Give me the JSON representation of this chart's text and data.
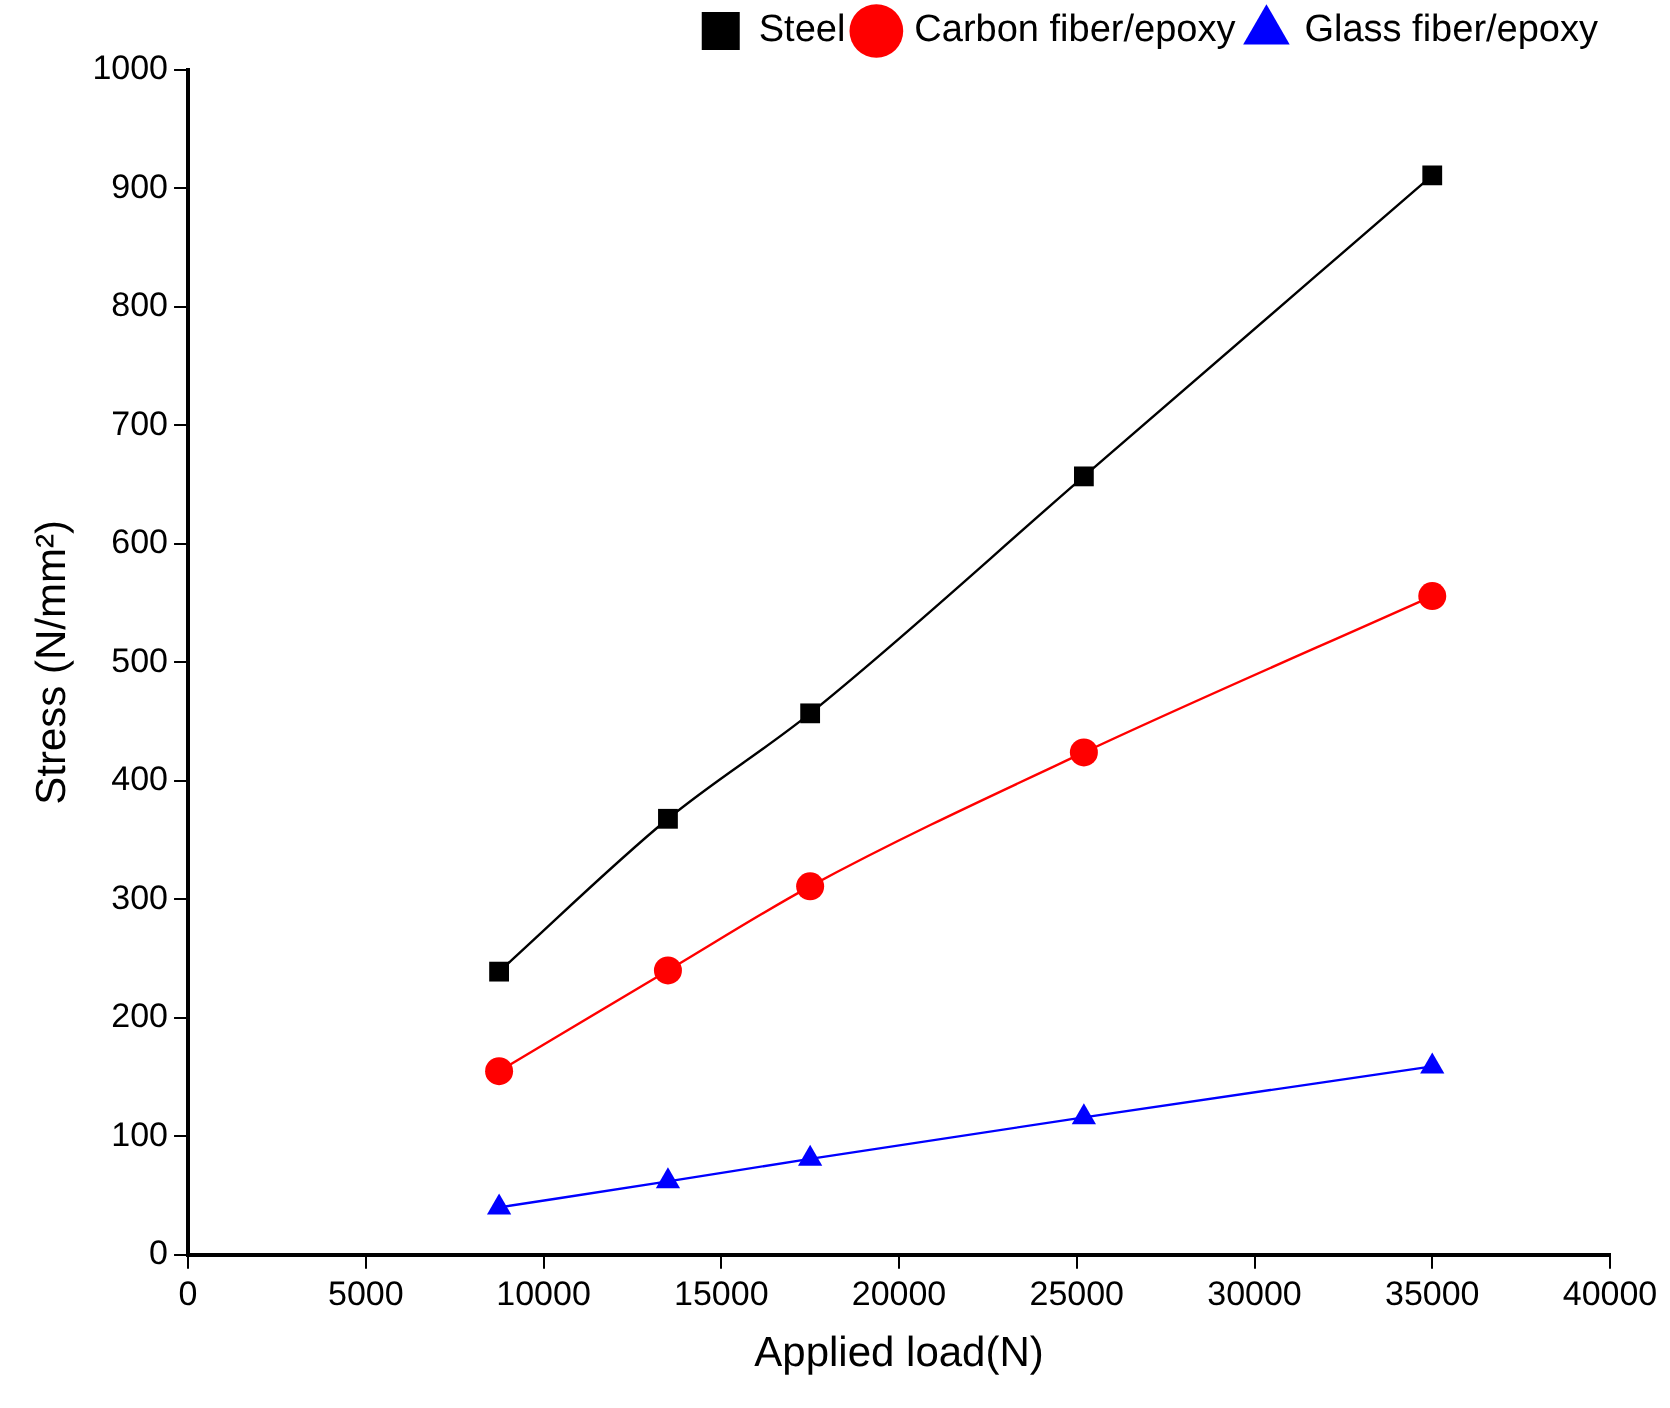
{
  "chart_data": {
    "type": "line",
    "xlabel": "Applied load(N)",
    "ylabel": "Stress (N/mm²)",
    "x": [
      8750,
      13500,
      17500,
      25200,
      35000
    ],
    "series": [
      {
        "name": "Steel",
        "color": "#000000",
        "marker": "square",
        "values": [
          239,
          368,
          457,
          657,
          911
        ]
      },
      {
        "name": "Carbon fiber/epoxy",
        "color": "#ff0000",
        "marker": "circle",
        "values": [
          155,
          240,
          311,
          424,
          556
        ]
      },
      {
        "name": "Glass fiber/epoxy",
        "color": "#0000ff",
        "marker": "triangle",
        "values": [
          40,
          62,
          81,
          116,
          159
        ]
      }
    ],
    "xlim": [
      0,
      40000
    ],
    "xticks": [
      0,
      5000,
      10000,
      15000,
      20000,
      25000,
      30000,
      35000,
      40000
    ],
    "ylim": [
      0,
      1000
    ],
    "yticks": [
      0,
      100,
      200,
      300,
      400,
      500,
      600,
      700,
      800,
      900,
      1000
    ],
    "grid": false,
    "legend": "top right",
    "line_style": "solid"
  }
}
